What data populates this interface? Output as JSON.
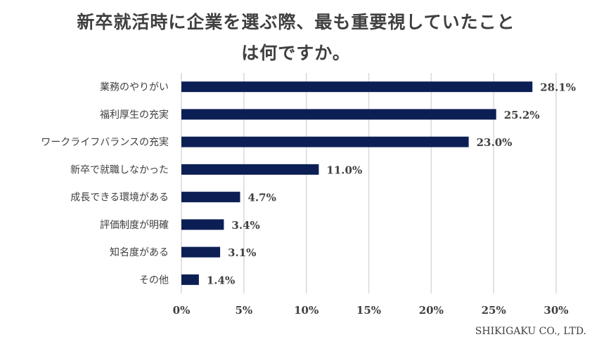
{
  "chart_data": {
    "type": "bar",
    "orientation": "horizontal",
    "title_lines": [
      "新卒就活時に企業を選ぶ際、最も重要視していたこと",
      "は何ですか。"
    ],
    "categories": [
      "業務のやりがい",
      "福利厚生の充実",
      "ワークライフバランスの充実",
      "新卒で就職しなかった",
      "成長できる環境がある",
      "評価制度が明確",
      "知名度がある",
      "その他"
    ],
    "values": [
      28.1,
      25.2,
      23.0,
      11.0,
      4.7,
      3.4,
      3.1,
      1.4
    ],
    "value_labels": [
      "28.1%",
      "25.2%",
      "23.0%",
      "11.0%",
      "4.7%",
      "3.4%",
      "3.1%",
      "1.4%"
    ],
    "x_ticks": [
      "0%",
      "5%",
      "10%",
      "15%",
      "20%",
      "25%",
      "30%"
    ],
    "xlim": [
      0,
      30
    ],
    "grid": true,
    "bar_color": "#0c1f55",
    "grid_color": "#d9d9d9"
  },
  "footer": "SHIKIGAKU CO., LTD."
}
